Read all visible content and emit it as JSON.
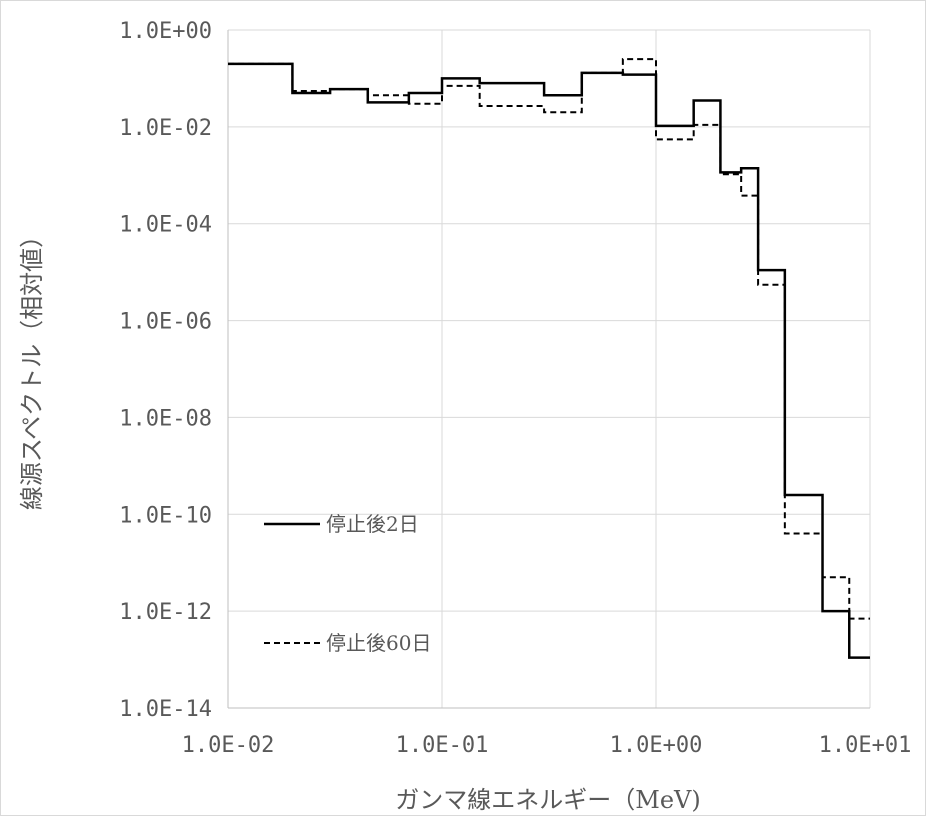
{
  "chart_data": {
    "type": "line",
    "xlabel": "ガンマ線エネルギー（MeV)",
    "ylabel": "線源スペクトル（相対値）",
    "x_scale": "log",
    "y_scale": "log",
    "xlim": [
      0.01,
      10
    ],
    "ylim": [
      1e-14,
      1
    ],
    "x_ticks": [
      0.01,
      0.1,
      1,
      10
    ],
    "x_tick_labels": [
      "1.0E-02",
      "1.0E-01",
      "1.0E+00",
      "1.0E+01"
    ],
    "y_ticks": [
      1,
      0.01,
      0.0001,
      1e-06,
      1e-08,
      1e-10,
      1e-12,
      1e-14
    ],
    "y_tick_labels": [
      "1.0E+00",
      "1.0E-02",
      "1.0E-04",
      "1.0E-06",
      "1.0E-08",
      "1.0E-10",
      "1.0E-12",
      "1.0E-14"
    ],
    "grid": true,
    "legend_position": "bottom-left",
    "bin_edges": [
      0.01,
      0.02,
      0.03,
      0.045,
      0.07,
      0.1,
      0.15,
      0.3,
      0.45,
      0.7,
      1.0,
      1.5,
      2.0,
      2.5,
      3.0,
      4.0,
      6.0,
      8.0,
      10.0
    ],
    "series": [
      {
        "name": "停止後2日",
        "style": "solid",
        "color": "#000000",
        "values": [
          0.2,
          0.05,
          0.06,
          0.032,
          0.05,
          0.1,
          0.08,
          0.045,
          0.13,
          0.12,
          0.0105,
          0.035,
          0.00115,
          0.0014,
          1.1e-05,
          2.5e-10,
          1e-12,
          1.1e-13
        ]
      },
      {
        "name": "停止後60日",
        "style": "dashed",
        "color": "#000000",
        "values": [
          0.2,
          0.055,
          0.06,
          0.045,
          0.03,
          0.07,
          0.027,
          0.02,
          0.13,
          0.25,
          0.0055,
          0.011,
          0.00105,
          0.00038,
          5.5e-06,
          4e-11,
          5e-12,
          7e-13
        ]
      }
    ]
  }
}
